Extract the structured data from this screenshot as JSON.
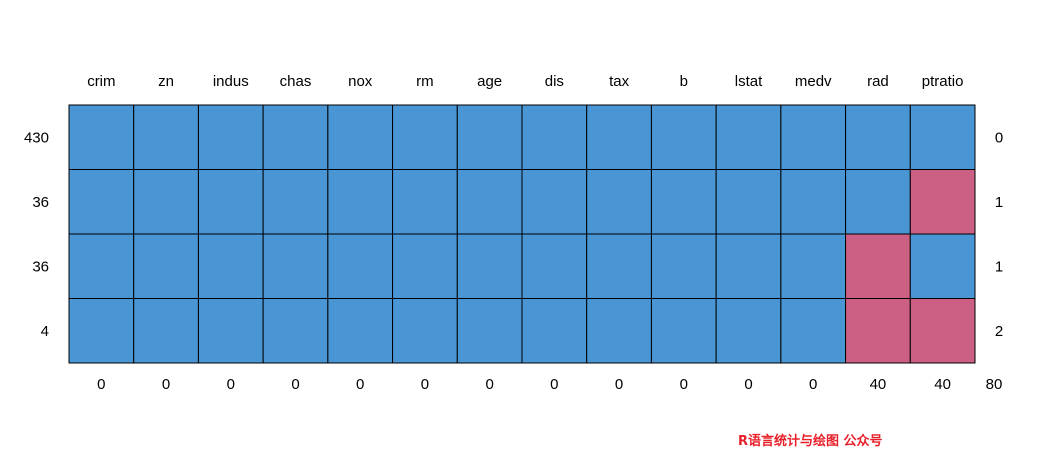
{
  "chart_data": {
    "type": "heatmap",
    "title": "",
    "variables": [
      "crim",
      "zn",
      "indus",
      "chas",
      "nox",
      "rm",
      "age",
      "dis",
      "tax",
      "b",
      "lstat",
      "medv",
      "rad",
      "ptratio"
    ],
    "patterns": [
      {
        "count": "430",
        "missing_vars": "0",
        "cells": [
          1,
          1,
          1,
          1,
          1,
          1,
          1,
          1,
          1,
          1,
          1,
          1,
          1,
          1
        ]
      },
      {
        "count": "36",
        "missing_vars": "1",
        "cells": [
          1,
          1,
          1,
          1,
          1,
          1,
          1,
          1,
          1,
          1,
          1,
          1,
          1,
          0
        ]
      },
      {
        "count": "36",
        "missing_vars": "1",
        "cells": [
          1,
          1,
          1,
          1,
          1,
          1,
          1,
          1,
          1,
          1,
          1,
          1,
          0,
          1
        ]
      },
      {
        "count": "4",
        "missing_vars": "2",
        "cells": [
          1,
          1,
          1,
          1,
          1,
          1,
          1,
          1,
          1,
          1,
          1,
          1,
          0,
          0
        ]
      }
    ],
    "missing_counts": [
      "0",
      "0",
      "0",
      "0",
      "0",
      "0",
      "0",
      "0",
      "0",
      "0",
      "0",
      "0",
      "40",
      "40"
    ],
    "total_missing": "80",
    "colors": {
      "observed": "#4a96d4",
      "missing": "#cc5f84",
      "border": "#000000"
    }
  },
  "watermark": "R语言统计与绘图 公众号"
}
